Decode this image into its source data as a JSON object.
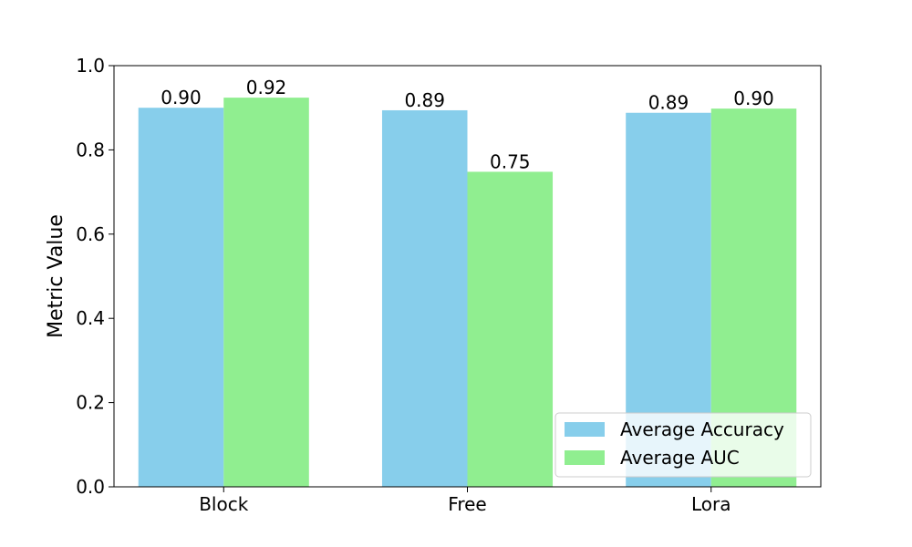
{
  "chart_data": {
    "type": "bar",
    "title": "",
    "xlabel": "",
    "ylabel": "Metric Value",
    "categories": [
      "Block",
      "Free",
      "Lora"
    ],
    "series": [
      {
        "name": "Average Accuracy",
        "color": "#87CEEB",
        "values": [
          0.9,
          0.894,
          0.888
        ],
        "labels": [
          "0.90",
          "0.89",
          "0.89"
        ]
      },
      {
        "name": "Average AUC",
        "color": "#90EE90",
        "values": [
          0.924,
          0.748,
          0.898
        ],
        "labels": [
          "0.92",
          "0.75",
          "0.90"
        ]
      }
    ],
    "ylim": [
      0,
      1.0
    ],
    "yticks": [
      0.0,
      0.2,
      0.4,
      0.6,
      0.8,
      1.0
    ],
    "ytick_labels": [
      "0.0",
      "0.2",
      "0.4",
      "0.6",
      "0.8",
      "1.0"
    ],
    "grid": false,
    "legend_position": "lower-right"
  }
}
